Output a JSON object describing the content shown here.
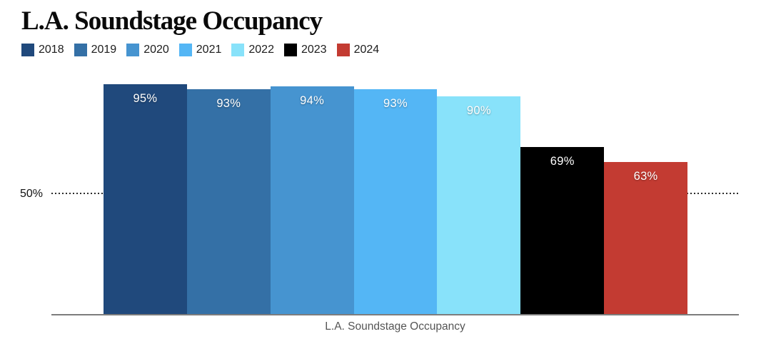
{
  "header": {
    "title": "L.A. Soundstage Occupancy"
  },
  "chart_data": {
    "type": "bar",
    "title": "L.A. Soundstage Occupancy",
    "categories": [
      "2018",
      "2019",
      "2020",
      "2021",
      "2022",
      "2023",
      "2024"
    ],
    "values": [
      95,
      93,
      94,
      93,
      90,
      69,
      63
    ],
    "value_labels": [
      "95%",
      "93%",
      "94%",
      "93%",
      "90%",
      "69%",
      "63%"
    ],
    "colors": [
      "#20497c",
      "#3470a6",
      "#4694d0",
      "#54b6f5",
      "#88e2fa",
      "#000000",
      "#c33b32"
    ],
    "value_label_color": "#ffffff",
    "xlabel": "L.A. Soundstage Occupancy",
    "ylabel": "",
    "ylim": [
      0,
      100
    ],
    "gridlines": [
      {
        "value": 50,
        "label": "50%",
        "style": "dotted"
      }
    ],
    "legend_position": "top",
    "bar_gap": 0
  }
}
